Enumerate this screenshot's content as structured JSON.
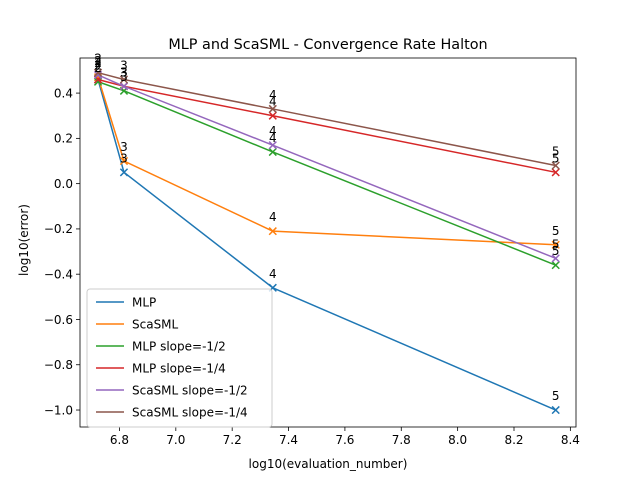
{
  "chart_data": {
    "type": "line",
    "title": "MLP and ScaSML - Convergence Rate Halton",
    "xlabel": "log10(evaluation_number)",
    "ylabel": "log10(error)",
    "xlim": [
      6.66,
      8.42
    ],
    "ylim": [
      -1.075,
      0.555
    ],
    "xticks": [
      6.8,
      7.0,
      7.2,
      7.4,
      7.6,
      7.8,
      8.0,
      8.2,
      8.4
    ],
    "xtick_labels": [
      "6.8",
      "7.0",
      "7.2",
      "7.4",
      "7.6",
      "7.8",
      "8.0",
      "8.2",
      "8.4"
    ],
    "yticks": [
      -1.0,
      -0.8,
      -0.6,
      -0.4,
      -0.2,
      0.0,
      0.2,
      0.4
    ],
    "ytick_labels": [
      "−1.0",
      "−0.8",
      "−0.6",
      "−0.4",
      "−0.2",
      "0.0",
      "0.2",
      "0.4"
    ],
    "grid": false,
    "legend_position": "lower-left",
    "x": [
      6.724,
      6.816,
      7.344,
      8.348
    ],
    "point_labels": [
      "2",
      "3",
      "4",
      "5"
    ],
    "series": [
      {
        "name": "MLP",
        "color": "#1f77b4",
        "values": [
          0.46,
          0.05,
          -0.46,
          -1.0
        ]
      },
      {
        "name": "ScaSML",
        "color": "#ff7f0e",
        "values": [
          0.47,
          0.1,
          -0.21,
          -0.27
        ]
      },
      {
        "name": "MLP slope=-1/2",
        "color": "#2ca02c",
        "values": [
          0.45,
          0.41,
          0.14,
          -0.36
        ]
      },
      {
        "name": "MLP slope=-1/4",
        "color": "#d62728",
        "values": [
          0.46,
          0.43,
          0.3,
          0.05
        ]
      },
      {
        "name": "ScaSML slope=-1/2",
        "color": "#9467bd",
        "values": [
          0.48,
          0.43,
          0.17,
          -0.33
        ]
      },
      {
        "name": "ScaSML slope=-1/4",
        "color": "#8c564b",
        "values": [
          0.49,
          0.46,
          0.33,
          0.08
        ]
      }
    ],
    "annotated_series": [
      "MLP",
      "ScaSML"
    ]
  }
}
